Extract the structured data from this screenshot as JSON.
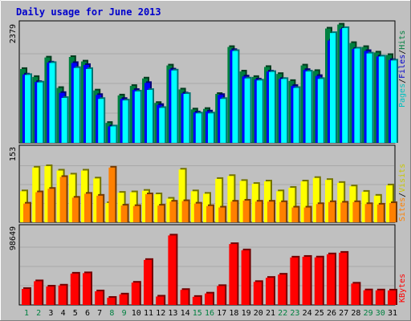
{
  "chart_data": [
    {
      "type": "bar",
      "title": "Daily usage for June 2013",
      "categories": [
        "1",
        "2",
        "3",
        "4",
        "5",
        "6",
        "7",
        "8",
        "9",
        "10",
        "11",
        "12",
        "13",
        "14",
        "15",
        "16",
        "17",
        "18",
        "19",
        "20",
        "21",
        "22",
        "23",
        "24",
        "25",
        "26",
        "27",
        "28",
        "29",
        "30",
        "31"
      ],
      "weekend_days": [
        "1",
        "2",
        "8",
        "9",
        "15",
        "16",
        "22",
        "23",
        "29",
        "30"
      ],
      "ymax_label": "2379",
      "ymax": 2379,
      "series": [
        {
          "name": "Hits",
          "color": "#008040",
          "values": [
            1480,
            1320,
            1710,
            1100,
            1720,
            1630,
            1050,
            400,
            950,
            1140,
            1290,
            800,
            1550,
            1070,
            670,
            680,
            980,
            1920,
            1430,
            1320,
            1520,
            1380,
            1240,
            1550,
            1440,
            2290,
            2370,
            2000,
            1920,
            1810,
            1760
          ]
        },
        {
          "name": "Files",
          "color": "#0000ff",
          "values": [
            1370,
            1220,
            1610,
            1000,
            1600,
            1560,
            960,
            330,
            880,
            1060,
            1200,
            760,
            1470,
            990,
            610,
            630,
            960,
            1860,
            1330,
            1270,
            1430,
            1280,
            1140,
            1460,
            1340,
            2050,
            2280,
            1880,
            1840,
            1730,
            1660
          ]
        },
        {
          "name": "Pages",
          "color": "#00ffff",
          "values": [
            1360,
            1210,
            1600,
            900,
            1500,
            1480,
            880,
            330,
            850,
            1030,
            1060,
            700,
            1450,
            980,
            590,
            590,
            880,
            1840,
            1290,
            1250,
            1420,
            1280,
            1100,
            1430,
            1280,
            2200,
            2300,
            1890,
            1790,
            1730,
            1650
          ]
        }
      ]
    },
    {
      "type": "bar",
      "ymax_label": "153",
      "ymax": 153,
      "series": [
        {
          "name": "Visits",
          "color": "#ffff00",
          "values": [
            63,
            111,
            114,
            105,
            97,
            105,
            89,
            39,
            60,
            61,
            64,
            57,
            48,
            107,
            63,
            58,
            88,
            94,
            84,
            78,
            83,
            63,
            70,
            83,
            90,
            86,
            80,
            73,
            62,
            54,
            75
          ]
        },
        {
          "name": "Sites",
          "color": "#ff8000",
          "values": [
            38,
            61,
            68,
            92,
            50,
            58,
            54,
            111,
            34,
            33,
            57,
            34,
            42,
            43,
            38,
            33,
            30,
            42,
            44,
            42,
            42,
            41,
            30,
            30,
            37,
            41,
            40,
            41,
            37,
            36,
            39
          ]
        }
      ]
    },
    {
      "type": "bar",
      "ymax_label": "98649",
      "ymax": 98649,
      "series": [
        {
          "name": "KBytes",
          "color": "#ff0000",
          "values": [
            20500,
            30400,
            23600,
            24900,
            40200,
            40700,
            17500,
            9200,
            13500,
            28600,
            57700,
            10800,
            89000,
            19300,
            10400,
            14700,
            24300,
            78000,
            70000,
            29500,
            34800,
            38900,
            60800,
            61700,
            60900,
            64900,
            66900,
            27400,
            18800,
            18700,
            18600
          ]
        }
      ]
    }
  ],
  "legend_upper": [
    {
      "label": "Pages",
      "color": "#00c0c0"
    },
    {
      "label": "Files",
      "color": "#0000cc"
    },
    {
      "label": "Hits",
      "color": "#008040"
    }
  ],
  "legend_middle": [
    {
      "label": "Sites",
      "color": "#ff8000"
    },
    {
      "label": "Visits",
      "color": "#c8c800"
    }
  ],
  "legend_lower": [
    {
      "label": "KBytes",
      "color": "#ff0000"
    }
  ],
  "sep": "/",
  "colors": {
    "weekday_label": "#000000",
    "weekend_label": "#008040",
    "background": "#c0c0c0",
    "title": "#0000cc"
  }
}
